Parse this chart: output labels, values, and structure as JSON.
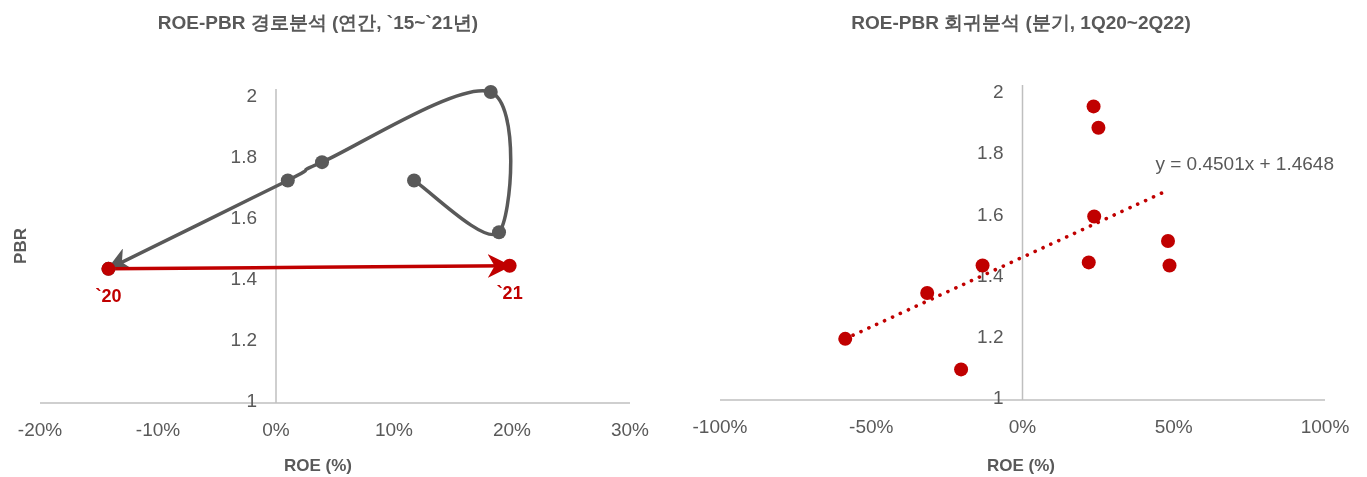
{
  "chart_data": [
    {
      "type": "line",
      "title": "ROE-PBR 경로분석 (연간, `15~`21년)",
      "xlabel": "ROE (%)",
      "ylabel": "PBR",
      "xlim": [
        -20,
        30
      ],
      "xticks": [
        {
          "value": -20,
          "label": "-20%"
        },
        {
          "value": -10,
          "label": "-10%"
        },
        {
          "value": 0,
          "label": "0%"
        },
        {
          "value": 10,
          "label": "10%"
        },
        {
          "value": 20,
          "label": "20%"
        },
        {
          "value": 30,
          "label": "30%"
        }
      ],
      "ylim": [
        1,
        2.03
      ],
      "yticks": [
        1,
        1.2,
        1.4,
        1.6,
        1.8,
        2
      ],
      "marker": "circle",
      "series": [
        {
          "color": "#595959",
          "x": [
            11.7,
            18.9,
            18.2,
            3.9,
            1.0,
            -14.2
          ],
          "values": [
            1.73,
            1.56,
            2.02,
            1.79,
            1.73,
            1.44
          ]
        },
        {
          "color": "#c00000",
          "x": [
            -14.2,
            19.8
          ],
          "values": [
            1.44,
            1.45
          ]
        }
      ],
      "annotations": [
        {
          "text": "`20",
          "x": -14.2,
          "y": 1.44
        },
        {
          "text": "`21",
          "x": 19.8,
          "y": 1.45
        }
      ]
    },
    {
      "type": "scatter",
      "title": "ROE-PBR 회귀분석 (분기, 1Q20~2Q22)",
      "xlabel": "ROE (%)",
      "xlim": [
        -100,
        100
      ],
      "xticks": [
        {
          "value": -100,
          "label": "-100%"
        },
        {
          "value": -50,
          "label": "-50%"
        },
        {
          "value": 0,
          "label": "0%"
        },
        {
          "value": 50,
          "label": "50%"
        },
        {
          "value": 100,
          "label": "100%"
        }
      ],
      "ylim": [
        1,
        2.03
      ],
      "yticks": [
        1,
        1.2,
        1.4,
        1.6,
        1.8,
        2
      ],
      "marker": "circle",
      "series": [
        {
          "type": "scatter",
          "color": "#c00000",
          "x": [
            23.5,
            25.1,
            23.7,
            21.9,
            48.1,
            48.6,
            -13.2,
            -31.5,
            -58.6,
            -20.3
          ],
          "values": [
            1.96,
            1.89,
            1.6,
            1.45,
            1.52,
            1.44,
            1.44,
            1.35,
            1.2,
            1.1
          ]
        },
        {
          "type": "line",
          "color": "#c00000",
          "line_style": "dotted",
          "marker": "none",
          "x": [
            -58.6,
            46.8
          ],
          "values": [
            1.2,
            1.68
          ]
        }
      ],
      "annotations": [
        "y = 0.4501x + 1.4648"
      ]
    }
  ]
}
